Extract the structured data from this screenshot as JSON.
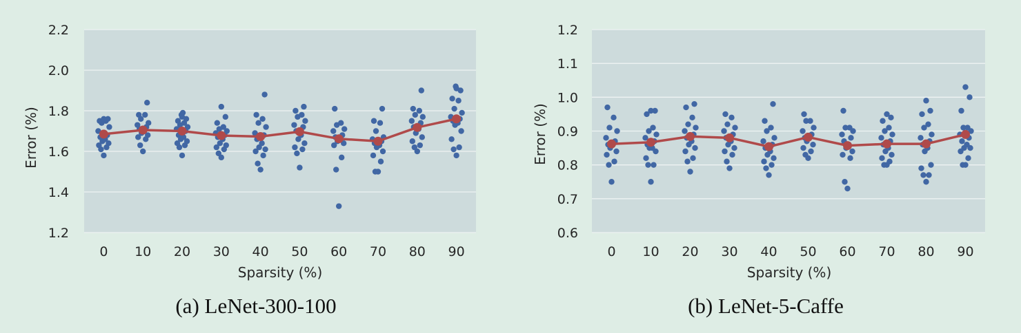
{
  "colors": {
    "page_background": "#deede5",
    "plot_background": "#cddbdc",
    "gridline": "#eef3f3",
    "point": "#4167a4",
    "mean_line": "#b04a4a"
  },
  "chart_data": [
    {
      "type": "scatter",
      "caption": "(a) LeNet-300-100",
      "xlabel": "Sparsity (%)",
      "ylabel": "Error (%)",
      "ylim": [
        1.2,
        2.2
      ],
      "yticks": [
        "1.2",
        "1.4",
        "1.6",
        "1.8",
        "2.0",
        "2.2"
      ],
      "categories": [
        "0",
        "10",
        "20",
        "30",
        "40",
        "50",
        "60",
        "70",
        "80",
        "90"
      ],
      "grid": true,
      "points": [
        [
          1.58,
          1.61,
          1.62,
          1.63,
          1.64,
          1.65,
          1.66,
          1.67,
          1.68,
          1.7,
          1.72,
          1.74,
          1.75,
          1.75,
          1.76,
          1.76
        ],
        [
          1.6,
          1.63,
          1.66,
          1.67,
          1.68,
          1.69,
          1.7,
          1.71,
          1.72,
          1.73,
          1.74,
          1.76,
          1.78,
          1.78,
          1.84
        ],
        [
          1.58,
          1.62,
          1.63,
          1.64,
          1.65,
          1.66,
          1.67,
          1.68,
          1.7,
          1.71,
          1.72,
          1.73,
          1.74,
          1.75,
          1.76,
          1.77,
          1.78,
          1.79
        ],
        [
          1.57,
          1.59,
          1.61,
          1.62,
          1.63,
          1.64,
          1.66,
          1.67,
          1.68,
          1.69,
          1.7,
          1.71,
          1.72,
          1.74,
          1.77,
          1.82
        ],
        [
          1.51,
          1.54,
          1.58,
          1.6,
          1.61,
          1.62,
          1.64,
          1.66,
          1.68,
          1.69,
          1.72,
          1.74,
          1.76,
          1.78,
          1.88
        ],
        [
          1.52,
          1.59,
          1.61,
          1.62,
          1.64,
          1.66,
          1.68,
          1.7,
          1.72,
          1.73,
          1.75,
          1.77,
          1.78,
          1.8,
          1.82
        ],
        [
          1.33,
          1.51,
          1.57,
          1.63,
          1.64,
          1.65,
          1.66,
          1.67,
          1.68,
          1.7,
          1.71,
          1.73,
          1.74,
          1.81
        ],
        [
          1.5,
          1.5,
          1.55,
          1.58,
          1.6,
          1.62,
          1.63,
          1.64,
          1.65,
          1.66,
          1.67,
          1.7,
          1.74,
          1.75,
          1.81
        ],
        [
          1.6,
          1.62,
          1.63,
          1.65,
          1.67,
          1.69,
          1.71,
          1.72,
          1.74,
          1.75,
          1.77,
          1.78,
          1.8,
          1.81,
          1.9
        ],
        [
          1.58,
          1.61,
          1.62,
          1.66,
          1.7,
          1.73,
          1.74,
          1.75,
          1.76,
          1.77,
          1.79,
          1.81,
          1.85,
          1.86,
          1.9,
          1.91,
          1.92
        ]
      ],
      "mean": [
        1.685,
        1.705,
        1.7,
        1.678,
        1.673,
        1.697,
        1.662,
        1.65,
        1.718,
        1.76
      ]
    },
    {
      "type": "scatter",
      "caption": "(b) LeNet-5-Caffe",
      "xlabel": "Sparsity (%)",
      "ylabel": "Error (%)",
      "ylim": [
        0.6,
        1.2
      ],
      "yticks": [
        "0.6",
        "0.7",
        "0.8",
        "0.9",
        "1.0",
        "1.1",
        "1.2"
      ],
      "categories": [
        "0",
        "10",
        "20",
        "30",
        "40",
        "50",
        "60",
        "70",
        "80",
        "90"
      ],
      "grid": true,
      "points": [
        [
          0.75,
          0.8,
          0.81,
          0.83,
          0.84,
          0.85,
          0.86,
          0.86,
          0.87,
          0.88,
          0.9,
          0.91,
          0.94,
          0.97
        ],
        [
          0.75,
          0.8,
          0.8,
          0.82,
          0.84,
          0.85,
          0.85,
          0.86,
          0.87,
          0.88,
          0.89,
          0.9,
          0.91,
          0.95,
          0.96,
          0.96
        ],
        [
          0.78,
          0.81,
          0.82,
          0.84,
          0.85,
          0.86,
          0.87,
          0.88,
          0.89,
          0.9,
          0.91,
          0.92,
          0.94,
          0.97,
          0.98
        ],
        [
          0.79,
          0.81,
          0.83,
          0.84,
          0.85,
          0.86,
          0.87,
          0.88,
          0.89,
          0.9,
          0.91,
          0.92,
          0.94,
          0.95
        ],
        [
          0.77,
          0.79,
          0.8,
          0.81,
          0.82,
          0.83,
          0.84,
          0.85,
          0.86,
          0.87,
          0.88,
          0.9,
          0.91,
          0.93,
          0.98
        ],
        [
          0.82,
          0.83,
          0.84,
          0.85,
          0.86,
          0.87,
          0.88,
          0.88,
          0.89,
          0.9,
          0.91,
          0.93,
          0.93,
          0.95
        ],
        [
          0.73,
          0.75,
          0.82,
          0.83,
          0.84,
          0.85,
          0.86,
          0.87,
          0.88,
          0.89,
          0.9,
          0.91,
          0.91,
          0.96
        ],
        [
          0.8,
          0.8,
          0.81,
          0.82,
          0.83,
          0.84,
          0.85,
          0.86,
          0.87,
          0.88,
          0.89,
          0.9,
          0.91,
          0.93,
          0.94,
          0.95
        ],
        [
          0.75,
          0.77,
          0.77,
          0.79,
          0.8,
          0.84,
          0.85,
          0.86,
          0.87,
          0.88,
          0.89,
          0.91,
          0.92,
          0.95,
          0.96,
          0.99
        ],
        [
          0.8,
          0.8,
          0.82,
          0.84,
          0.85,
          0.85,
          0.86,
          0.87,
          0.88,
          0.89,
          0.9,
          0.91,
          0.91,
          0.96,
          1.0,
          1.03
        ]
      ],
      "mean": [
        0.862,
        0.867,
        0.884,
        0.88,
        0.854,
        0.882,
        0.857,
        0.862,
        0.862,
        0.89
      ]
    }
  ]
}
